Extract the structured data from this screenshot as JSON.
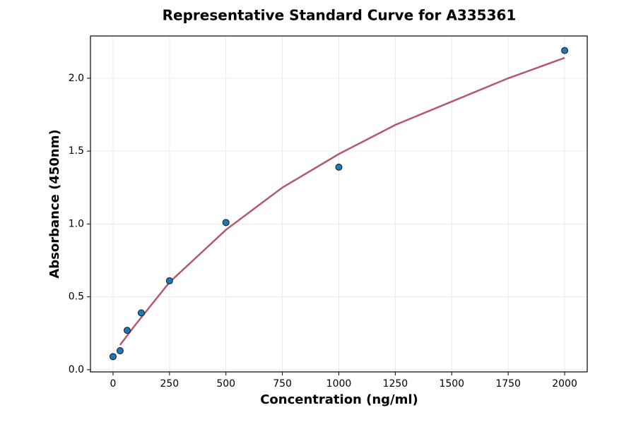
{
  "chart_data": {
    "type": "scatter",
    "title": "Representative Standard Curve for A335361",
    "xlabel": "Concentration (ng/ml)",
    "ylabel": "Absorbance (450nm)",
    "series": [
      {
        "kind": "scatter",
        "color": "#1f77b4",
        "edgecolor": "#1a1a1a",
        "x": [
          0,
          31.25,
          62.5,
          125,
          250,
          500,
          1000,
          2000
        ],
        "values": [
          0.09,
          0.13,
          0.27,
          0.39,
          0.61,
          1.01,
          1.39,
          2.19
        ]
      },
      {
        "kind": "line",
        "color": "#b5586a",
        "x": [
          31.25,
          100,
          250,
          500,
          750,
          1000,
          1250,
          1500,
          1750,
          2000
        ],
        "values": [
          0.17,
          0.31,
          0.6,
          0.96,
          1.25,
          1.48,
          1.68,
          1.84,
          2.0,
          2.14
        ]
      }
    ],
    "xlim": [
      -100,
      2100
    ],
    "ylim": [
      -0.015,
      2.29
    ],
    "xticks": [
      0,
      250,
      500,
      750,
      1000,
      1250,
      1500,
      1750,
      2000
    ],
    "yticks": [
      {
        "value": 0,
        "label": "0.0"
      },
      0.5,
      {
        "value": 1,
        "label": "1.0"
      },
      1.5,
      {
        "value": 2,
        "label": "2.0"
      }
    ],
    "grid": true
  }
}
